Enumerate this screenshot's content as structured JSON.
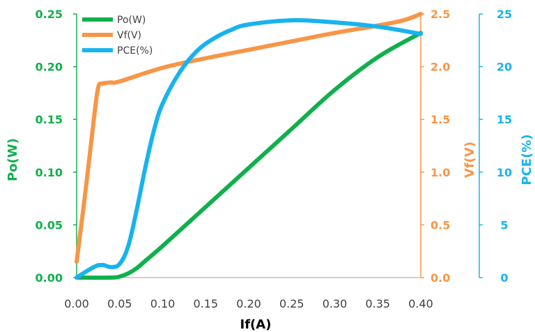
{
  "colors": {
    "po": "#10B04C",
    "vf": "#F79646",
    "pce": "#18B3EF",
    "xaxis": "#404040",
    "xline": "#BFBFBF"
  },
  "chart_data": {
    "type": "line",
    "xlabel": "If(A)",
    "x_ticks": [
      "0.00",
      "0.05",
      "0.10",
      "0.15",
      "0.20",
      "0.25",
      "0.30",
      "0.35",
      "0.40"
    ],
    "xlim": [
      0,
      0.4
    ],
    "axes": [
      {
        "key": "po",
        "label": "Po(W)",
        "side": "left",
        "ylim": [
          0,
          0.25
        ],
        "ticks": [
          "0.00",
          "0.05",
          "0.10",
          "0.15",
          "0.20",
          "0.25"
        ]
      },
      {
        "key": "vf",
        "label": "Vf(V)",
        "side": "right",
        "ylim": [
          0,
          2.5
        ],
        "ticks": [
          "0.0",
          "0.5",
          "1.0",
          "1.5",
          "2.0",
          "2.5"
        ]
      },
      {
        "key": "pce",
        "label": "PCE(%)",
        "side": "right-outer",
        "ylim": [
          0,
          25
        ],
        "ticks": [
          "0",
          "5",
          "10",
          "15",
          "20",
          "25"
        ]
      }
    ],
    "legend": {
      "position": "top-left"
    },
    "series": [
      {
        "key": "po",
        "name": "Po(W)",
        "axis": "po",
        "x": [
          0,
          0.04,
          0.05,
          0.06,
          0.07,
          0.08,
          0.1,
          0.15,
          0.2,
          0.25,
          0.3,
          0.35,
          0.4
        ],
        "y": [
          0,
          0,
          0.001,
          0.004,
          0.009,
          0.016,
          0.03,
          0.067,
          0.104,
          0.141,
          0.178,
          0.209,
          0.232
        ]
      },
      {
        "key": "vf",
        "name": "Vf(V)",
        "axis": "vf",
        "x": [
          0,
          0.01,
          0.02,
          0.025,
          0.03,
          0.04,
          0.05,
          0.1,
          0.15,
          0.2,
          0.25,
          0.3,
          0.35,
          0.38,
          0.4
        ],
        "y": [
          0.15,
          0.8,
          1.5,
          1.8,
          1.84,
          1.85,
          1.86,
          1.99,
          2.08,
          2.16,
          2.24,
          2.32,
          2.39,
          2.44,
          2.5
        ]
      },
      {
        "key": "pce",
        "name": "PCE(%)",
        "axis": "pce",
        "x": [
          0,
          0.02,
          0.03,
          0.04,
          0.05,
          0.06,
          0.07,
          0.08,
          0.09,
          0.1,
          0.12,
          0.14,
          0.16,
          0.18,
          0.2,
          0.25,
          0.3,
          0.35,
          0.4
        ],
        "y": [
          0,
          1,
          1.2,
          1,
          1.3,
          3,
          6.5,
          10.5,
          14,
          16.5,
          19.5,
          21.5,
          22.7,
          23.5,
          24,
          24.4,
          24.2,
          23.8,
          23.1
        ]
      }
    ]
  }
}
